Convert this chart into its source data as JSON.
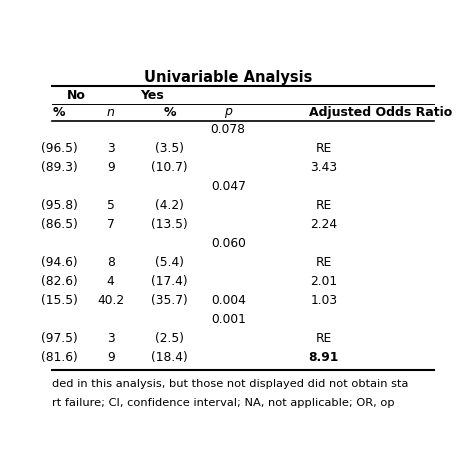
{
  "title": "Univariable Analysis",
  "rows": [
    [
      "",
      "",
      "",
      "0.078",
      ""
    ],
    [
      "(96.5)",
      "3",
      "(3.5)",
      "",
      "RE"
    ],
    [
      "(89.3)",
      "9",
      "(10.7)",
      "",
      "3.43"
    ],
    [
      "",
      "",
      "",
      "0.047",
      ""
    ],
    [
      "(95.8)",
      "5",
      "(4.2)",
      "",
      "RE"
    ],
    [
      "(86.5)",
      "7",
      "(13.5)",
      "",
      "2.24"
    ],
    [
      "",
      "",
      "",
      "0.060",
      ""
    ],
    [
      "(94.6)",
      "8",
      "(5.4)",
      "",
      "RE"
    ],
    [
      "(82.6)",
      "4",
      "(17.4)",
      "",
      "2.01"
    ],
    [
      "(15.5)",
      "40.2",
      "(35.7)",
      "0.004",
      "1.03"
    ],
    [
      "",
      "",
      "",
      "0.001",
      ""
    ],
    [
      "(97.5)",
      "3",
      "(2.5)",
      "",
      "RE"
    ],
    [
      "(81.6)",
      "9",
      "(18.4)",
      "",
      "8.91"
    ]
  ],
  "footer_lines": [
    "ded in this analysis, but those not displayed did not obtain sta",
    "rt failure; CI, confidence interval; NA, not applicable; OR, op"
  ],
  "bold_or": [
    "8.91"
  ],
  "background_color": "#ffffff",
  "text_color": "#000000",
  "title_fontsize": 10.5,
  "header_fontsize": 9,
  "body_fontsize": 8.8,
  "footer_fontsize": 8.2,
  "col_no_pct": -0.04,
  "col_n": 0.14,
  "col_yes_pct": 0.3,
  "col_p": 0.46,
  "col_or": 0.72,
  "col_no_label": 0.02,
  "col_yes_label": 0.22
}
